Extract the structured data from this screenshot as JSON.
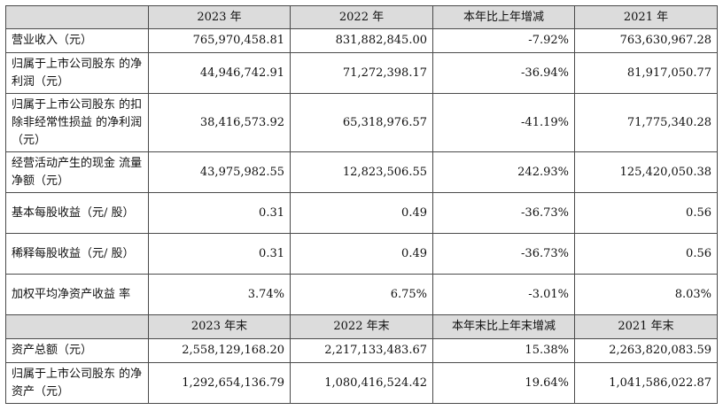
{
  "header1": [
    "",
    "2023 年",
    "2022 年",
    "本年比上年增减",
    "2021 年"
  ],
  "rows1": [
    {
      "label": "营业收入（元）",
      "values": [
        "765,970,458.81",
        "831,882,845.00",
        "-7.92%",
        "763,630,967.28"
      ]
    },
    {
      "label": "归属于上市公司股东\n的净利润（元）",
      "values": [
        "44,946,742.91",
        "71,272,398.17",
        "-36.94%",
        "81,917,050.77"
      ]
    },
    {
      "label": "归属于上市公司股东\n的扣除非经常性损益\n的净利润（元）",
      "values": [
        "38,416,573.92",
        "65,318,976.57",
        "-41.19%",
        "71,775,340.28"
      ]
    },
    {
      "label": "经营活动产生的现金\n流量净额（元）",
      "values": [
        "43,975,982.55",
        "12,823,506.55",
        "242.93%",
        "125,420,050.38"
      ]
    },
    {
      "label": "基本每股收益（元/\n股）",
      "values": [
        "0.31",
        "0.49",
        "-36.73%",
        "0.56"
      ]
    },
    {
      "label": "稀释每股收益（元/\n股）",
      "values": [
        "0.31",
        "0.49",
        "-36.73%",
        "0.56"
      ]
    },
    {
      "label": "加权平均净资产收益\n率",
      "values": [
        "3.74%",
        "6.75%",
        "-3.01%",
        "8.03%"
      ]
    }
  ],
  "header2": [
    "",
    "2023 年末",
    "2022 年末",
    "本年末比上年末增减",
    "2021 年末"
  ],
  "rows2": [
    {
      "label": "资产总额（元）",
      "values": [
        "2,558,129,168.20",
        "2,217,133,483.67",
        "15.38%",
        "2,263,820,083.59"
      ]
    },
    {
      "label": "归属于上市公司股东\n的净资产（元）",
      "values": [
        "1,292,654,136.79",
        "1,080,416,524.42",
        "19.64%",
        "1,041,586,022.87"
      ]
    }
  ]
}
